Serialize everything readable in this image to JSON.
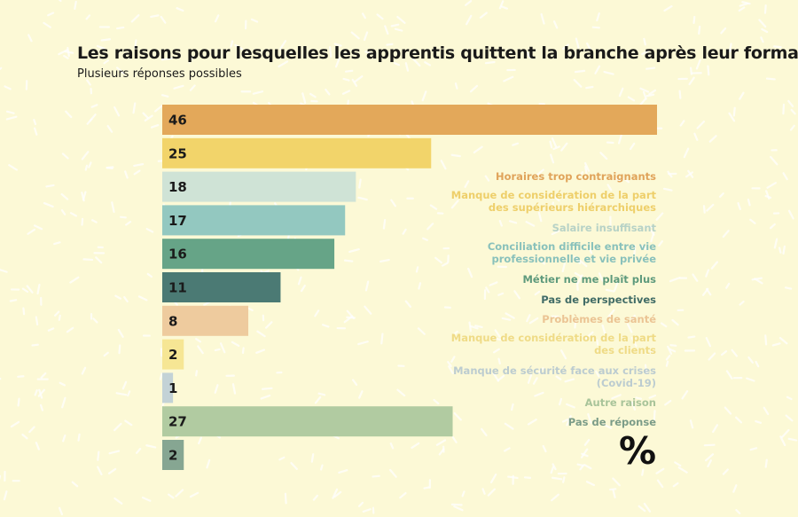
{
  "title": "Les raisons pour lesquelles les apprentis quittent la branche après leur formation",
  "subtitle": "Plusieurs réponses possibles",
  "unit_symbol": "%",
  "chart_data": {
    "type": "bar",
    "orientation": "horizontal",
    "title": "Les raisons pour lesquelles les apprentis quittent la branche après leur formation",
    "subtitle": "Plusieurs réponses possibles",
    "unit": "%",
    "categories": [
      "Horaires trop contraignants",
      "Manque de considération de la part des supérieurs hiérarchiques",
      "Salaire insuffisant",
      "Conciliation difficile entre vie professionnelle et vie privée",
      "Métier ne me plaît plus",
      "Pas de perspectives",
      "Problèmes de santé",
      "Manque de considération de la part des clients",
      "Manque de sécurité face aux crises (Covid-19)",
      "Autre raison",
      "Pas de réponse"
    ],
    "legend_lines": [
      [
        "Horaires trop contraignants"
      ],
      [
        "Manque de considération de la part",
        "des supérieurs hiérarchiques"
      ],
      [
        "Salaire insuffisant"
      ],
      [
        "Conciliation difficile entre vie",
        "professionnelle et vie privée"
      ],
      [
        "Métier ne me plaît plus"
      ],
      [
        "Pas de perspectives"
      ],
      [
        "Problèmes de santé"
      ],
      [
        "Manque de considération de la part",
        "des clients"
      ],
      [
        "Manque de sécurité face aux crises",
        "(Covid-19)"
      ],
      [
        "Autre raison"
      ],
      [
        "Pas de réponse"
      ]
    ],
    "values": [
      46,
      25,
      18,
      17,
      16,
      11,
      8,
      2,
      1,
      27,
      2
    ],
    "colors": [
      "#e3a85a",
      "#f2d46a",
      "#cfe3d6",
      "#93c8c0",
      "#66a487",
      "#4b7a74",
      "#eecb9e",
      "#f6e694",
      "#c3d2d6",
      "#b1cba1",
      "#86a692"
    ],
    "legend_colors": [
      "#e0a35a",
      "#eecf6a",
      "#b7d2c6",
      "#89c1bb",
      "#5e9a7c",
      "#416c66",
      "#ebc494",
      "#efdb86",
      "#bcccd0",
      "#a9c49a",
      "#7b9c88"
    ],
    "xlim": [
      0,
      46
    ],
    "legend_position": "right",
    "grid": false
  }
}
